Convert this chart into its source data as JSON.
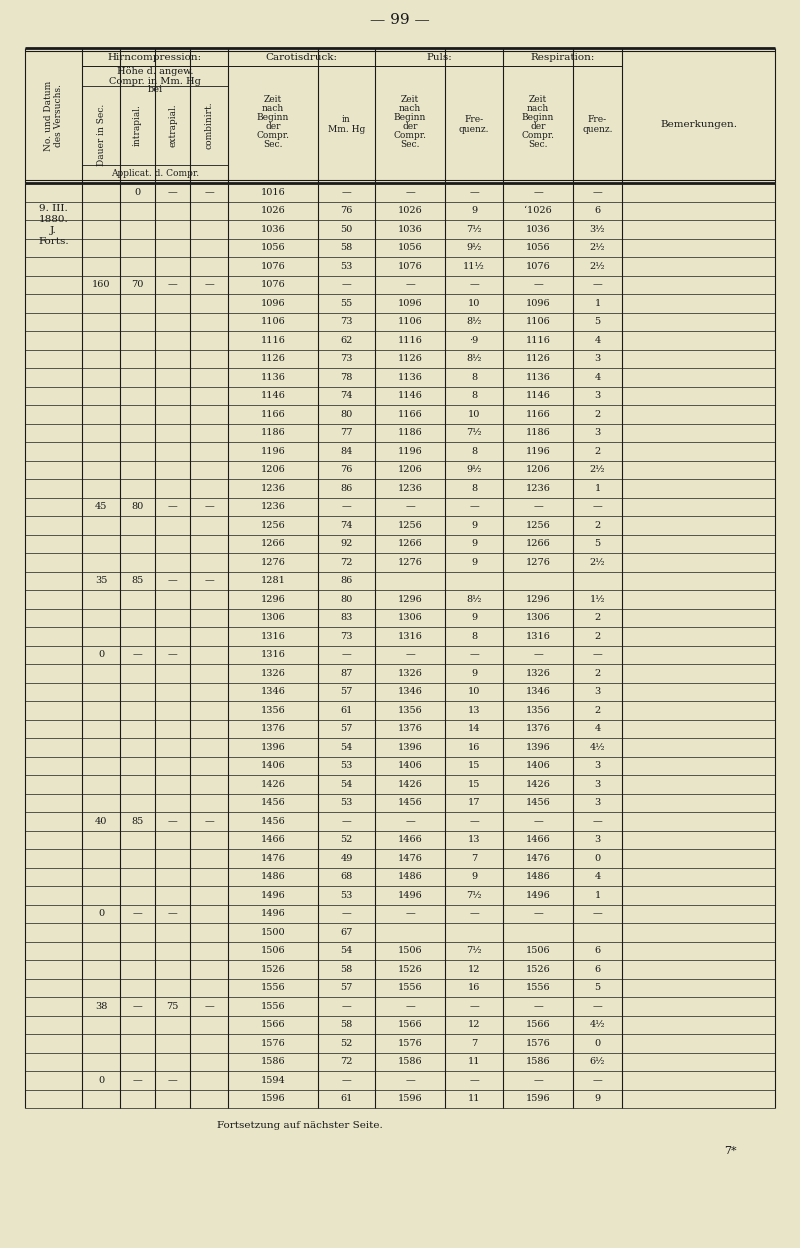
{
  "page_number": "99",
  "bg_color": "#e8e5c8",
  "rows": [
    [
      "1016",
      "—",
      "—",
      "—",
      "—",
      "—"
    ],
    [
      "1026",
      "76",
      "1026",
      "9",
      "ʻ1026",
      "6"
    ],
    [
      "1036",
      "50",
      "1036",
      "7¹⁄₂",
      "1036",
      "3¹⁄₂"
    ],
    [
      "1056",
      "58",
      "1056",
      "9¹⁄₂",
      "1056",
      "2¹⁄₂"
    ],
    [
      "1076",
      "53",
      "1076",
      "11¹⁄₂",
      "1076",
      "2¹⁄₂"
    ],
    [
      "1076",
      "—",
      "—",
      "—",
      "—",
      "—"
    ],
    [
      "1096",
      "55",
      "1096",
      "10",
      "1096",
      "1"
    ],
    [
      "1106",
      "73",
      "1106",
      "8¹⁄₂",
      "1106",
      "5"
    ],
    [
      "1116",
      "62",
      "1116",
      "·9",
      "1116",
      "4"
    ],
    [
      "1126",
      "73",
      "1126",
      "8¹⁄₂",
      "1126",
      "3"
    ],
    [
      "1136",
      "78",
      "1136",
      "8",
      "1136",
      "4"
    ],
    [
      "1146",
      "74",
      "1146",
      "8",
      "1146",
      "3"
    ],
    [
      "1166",
      "80",
      "1166",
      "10",
      "1166",
      "2"
    ],
    [
      "1186",
      "77",
      "1186",
      "7¹⁄₂",
      "1186",
      "3"
    ],
    [
      "1196",
      "84",
      "1196",
      "8",
      "1196",
      "2"
    ],
    [
      "1206",
      "76",
      "1206",
      "9¹⁄₂",
      "1206",
      "2¹⁄₂"
    ],
    [
      "1236",
      "86",
      "1236",
      "8",
      "1236",
      "1"
    ],
    [
      "1236",
      "—",
      "—",
      "—",
      "—",
      "—"
    ],
    [
      "1256",
      "74",
      "1256",
      "9",
      "1256",
      "2"
    ],
    [
      "1266",
      "92",
      "1266",
      "9",
      "1266",
      "5"
    ],
    [
      "1276",
      "72",
      "1276",
      "9",
      "1276",
      "2¹⁄₂"
    ],
    [
      "1281",
      "86",
      "",
      "",
      "",
      ""
    ],
    [
      "1296",
      "80",
      "1296",
      "8¹⁄₂",
      "1296",
      "1¹⁄₂"
    ],
    [
      "1306",
      "83",
      "1306",
      "9",
      "1306",
      "2"
    ],
    [
      "1316",
      "73",
      "1316",
      "8",
      "1316",
      "2"
    ],
    [
      "1316",
      "—",
      "—",
      "—",
      "—",
      "—"
    ],
    [
      "1326",
      "87",
      "1326",
      "9",
      "1326",
      "2"
    ],
    [
      "1346",
      "57",
      "1346",
      "10",
      "1346",
      "3"
    ],
    [
      "1356",
      "61",
      "1356",
      "13",
      "1356",
      "2"
    ],
    [
      "1376",
      "57",
      "1376",
      "14",
      "1376",
      "4"
    ],
    [
      "1396",
      "54",
      "1396",
      "16",
      "1396",
      "4¹⁄₂"
    ],
    [
      "1406",
      "53",
      "1406",
      "15",
      "1406",
      "3"
    ],
    [
      "1426",
      "54",
      "1426",
      "15",
      "1426",
      "3"
    ],
    [
      "1456",
      "53",
      "1456",
      "17",
      "1456",
      "3"
    ],
    [
      "1456",
      "—",
      "—",
      "—",
      "—",
      "—"
    ],
    [
      "1466",
      "52",
      "1466",
      "13",
      "1466",
      "3"
    ],
    [
      "1476",
      "49",
      "1476",
      "7",
      "1476",
      "0"
    ],
    [
      "1486",
      "68",
      "1486",
      "9",
      "1486",
      "4"
    ],
    [
      "1496",
      "53",
      "1496",
      "7¹⁄₂",
      "1496",
      "1"
    ],
    [
      "1496",
      "—",
      "—",
      "—",
      "—",
      "—"
    ],
    [
      "1500",
      "67",
      "",
      "",
      "",
      ""
    ],
    [
      "1506",
      "54",
      "1506",
      "7¹⁄₂",
      "1506",
      "6"
    ],
    [
      "1526",
      "58",
      "1526",
      "12",
      "1526",
      "6"
    ],
    [
      "1556",
      "57",
      "1556",
      "16",
      "1556",
      "5"
    ],
    [
      "1556",
      "—",
      "—",
      "—",
      "—",
      "—"
    ],
    [
      "1566",
      "58",
      "1566",
      "12",
      "1566",
      "4¹⁄₂"
    ],
    [
      "1576",
      "52",
      "1576",
      "7",
      "1576",
      "0"
    ],
    [
      "1586",
      "72",
      "1586",
      "11",
      "1586",
      "6¹⁄₂"
    ],
    [
      "1594",
      "—",
      "—",
      "—",
      "—",
      "—"
    ],
    [
      "1596",
      "61",
      "1596",
      "11",
      "1596",
      "9"
    ]
  ],
  "left_entries": {
    "0": {
      "label": [
        "9. III.",
        "1880.",
        "J.",
        "Forts."
      ],
      "dauer": "",
      "intra": "0",
      "extra": "—",
      "comb": "—"
    },
    "5": {
      "label": [],
      "dauer": "160",
      "intra": "70",
      "extra": "—",
      "comb": "—"
    },
    "17": {
      "label": [],
      "dauer": "45",
      "intra": "80",
      "extra": "—",
      "comb": "—"
    },
    "21": {
      "label": [],
      "dauer": "35",
      "intra": "85",
      "extra": "—",
      "comb": "—"
    },
    "25": {
      "label": [],
      "dauer": "0",
      "intra": "—",
      "extra": "—",
      "comb": ""
    },
    "34": {
      "label": [],
      "dauer": "40",
      "intra": "85",
      "extra": "—",
      "comb": "—"
    },
    "39": {
      "label": [],
      "dauer": "0",
      "intra": "—",
      "extra": "—",
      "comb": ""
    },
    "44": {
      "label": [],
      "dauer": "38",
      "intra": "—",
      "extra": "75",
      "comb": "—"
    },
    "48": {
      "label": [],
      "dauer": "0",
      "intra": "—",
      "extra": "—",
      "comb": ""
    }
  },
  "footer": "Fortsetzung auf nächster Seite.",
  "footnote": "7*"
}
